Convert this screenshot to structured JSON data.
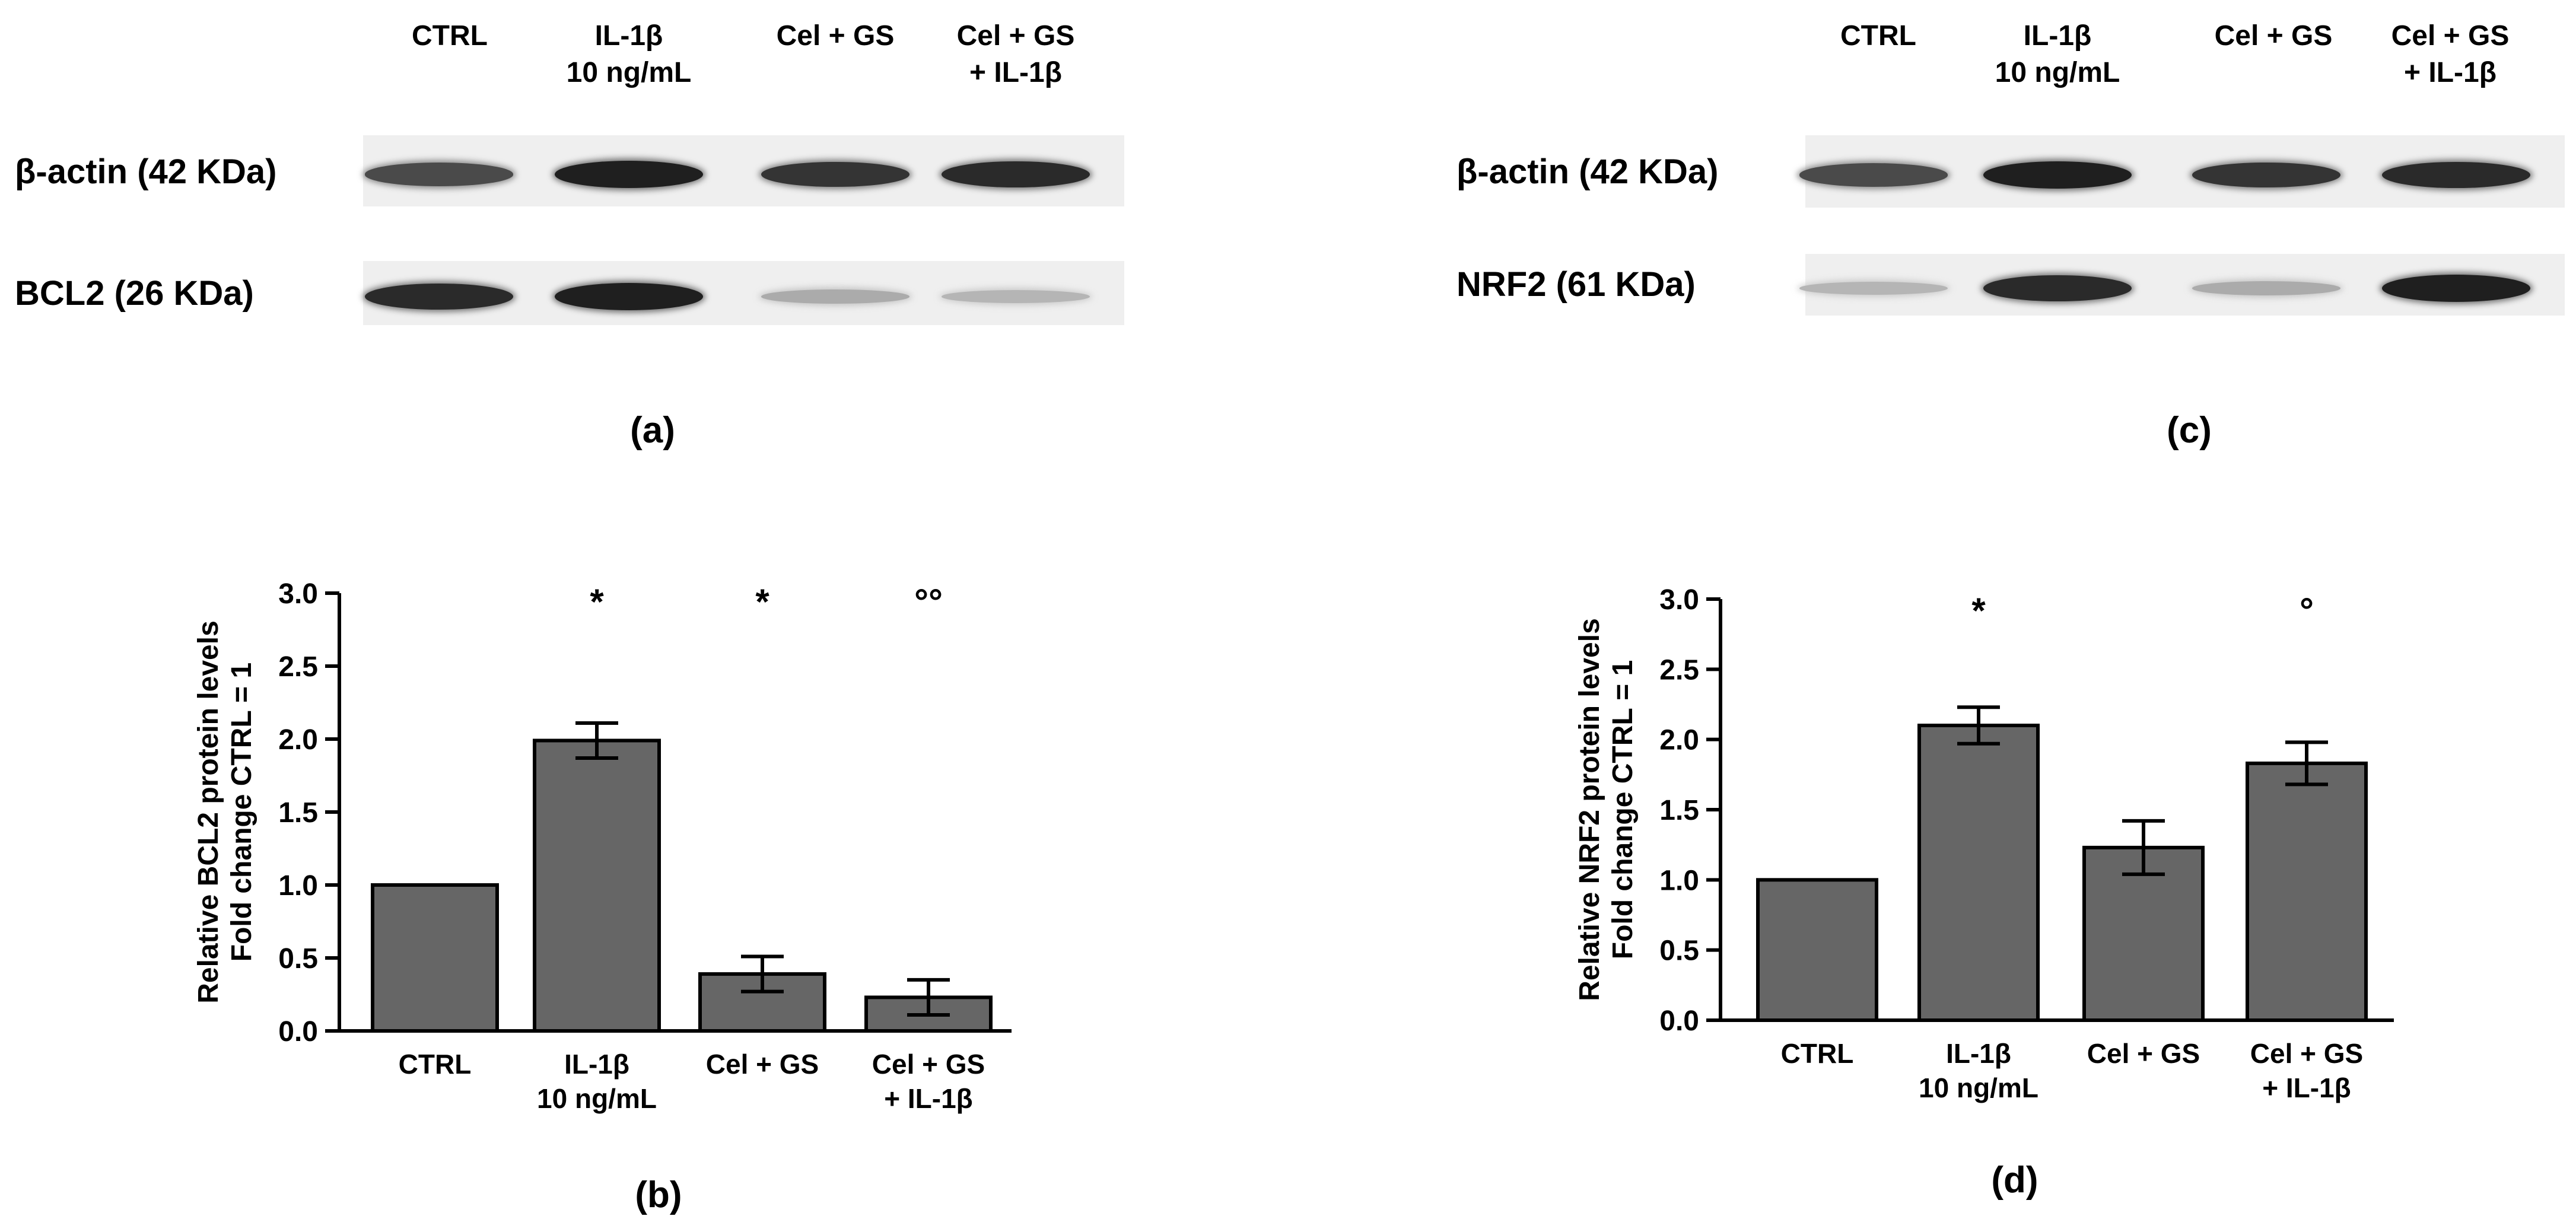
{
  "panels": [
    {
      "id": "a",
      "label": "(a)",
      "lanes": [
        {
          "line1": "CTRL",
          "line2": ""
        },
        {
          "line1": "IL-1β",
          "line2": "10 ng/mL"
        },
        {
          "line1": "Cel + GS",
          "line2": ""
        },
        {
          "line1": "Cel + GS",
          "line2": "+ IL-1β"
        }
      ],
      "rows": [
        {
          "label": "β-actin (42 KDa)",
          "band_intensity": [
            0.75,
            0.95,
            0.85,
            0.9
          ]
        },
        {
          "label": "BCL2 (26 KDa)",
          "band_intensity": [
            0.9,
            0.95,
            0.3,
            0.25
          ]
        }
      ]
    },
    {
      "id": "c",
      "label": "(c)",
      "lanes": [
        {
          "line1": "CTRL",
          "line2": ""
        },
        {
          "line1": "IL-1β",
          "line2": "10 ng/mL"
        },
        {
          "line1": "Cel + GS",
          "line2": ""
        },
        {
          "line1": "Cel + GS",
          "line2": "+ IL-1β"
        }
      ],
      "rows": [
        {
          "label": "β-actin (42 KDa)",
          "band_intensity": [
            0.75,
            0.95,
            0.85,
            0.9
          ]
        },
        {
          "label": "NRF2 (61 KDa)",
          "band_intensity": [
            0.25,
            0.9,
            0.3,
            0.95
          ]
        }
      ]
    }
  ],
  "chart_data": [
    {
      "type": "bar",
      "panel_label": "(b)",
      "categories": [
        {
          "line1": "CTRL",
          "line2": ""
        },
        {
          "line1": "IL-1β",
          "line2": "10 ng/mL"
        },
        {
          "line1": "Cel + GS",
          "line2": ""
        },
        {
          "line1": "Cel + GS",
          "line2": "+ IL-1β"
        }
      ],
      "values": [
        1.0,
        1.99,
        0.39,
        0.23
      ],
      "errors": [
        0,
        0.12,
        0.12,
        0.12
      ],
      "significance": [
        "",
        "*",
        "*",
        "°°"
      ],
      "ylabel_line1": "Relative BCL2 protein levels",
      "ylabel_line2": "Fold change CTRL = 1",
      "ylim": [
        0,
        3.0
      ],
      "yticks": [
        "0.0",
        "0.5",
        "1.0",
        "1.5",
        "2.0",
        "2.5",
        "3.0"
      ],
      "bar_color": "#666666",
      "grid": false
    },
    {
      "type": "bar",
      "panel_label": "(d)",
      "categories": [
        {
          "line1": "CTRL",
          "line2": ""
        },
        {
          "line1": "IL-1β",
          "line2": "10 ng/mL"
        },
        {
          "line1": "Cel + GS",
          "line2": ""
        },
        {
          "line1": "Cel + GS",
          "line2": "+ IL-1β"
        }
      ],
      "values": [
        1.0,
        2.1,
        1.23,
        1.83
      ],
      "errors": [
        0,
        0.13,
        0.19,
        0.15
      ],
      "significance": [
        "",
        "*",
        "",
        "°"
      ],
      "ylabel_line1": "Relative NRF2 protein levels",
      "ylabel_line2": "Fold change CTRL = 1",
      "ylim": [
        0,
        3.0
      ],
      "yticks": [
        "0.0",
        "0.5",
        "1.0",
        "1.5",
        "2.0",
        "2.5",
        "3.0"
      ],
      "bar_color": "#666666",
      "grid": false
    }
  ]
}
